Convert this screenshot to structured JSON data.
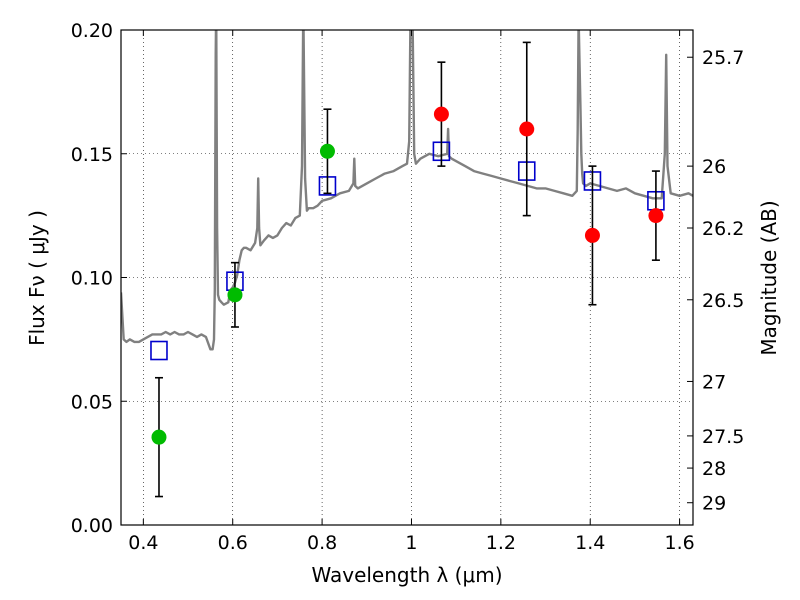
{
  "chart_data": {
    "type": "scatter",
    "xlabel": "Wavelength  λ (μm)",
    "ylabel": "Flux  Fν  ( μJy )",
    "y2label": "Magnitude (AB)",
    "xlim": [
      0.35,
      1.63
    ],
    "ylim": [
      0.0,
      0.2
    ],
    "grid": true,
    "x_ticks": [
      0.4,
      0.6,
      0.8,
      1.0,
      1.2,
      1.4,
      1.6
    ],
    "x_tick_labels": [
      "0.4",
      "0.6",
      "0.8",
      "1",
      "1.2",
      "1.4",
      "1.6"
    ],
    "y_ticks": [
      0.0,
      0.05,
      0.1,
      0.15,
      0.2
    ],
    "y_tick_labels": [
      "0.00",
      "0.05",
      "0.10",
      "0.15",
      "0.20"
    ],
    "y2_ticks": [
      {
        "label": "25.7",
        "flux": 0.189
      },
      {
        "label": "26",
        "flux": 0.145
      },
      {
        "label": "26.2",
        "flux": 0.12
      },
      {
        "label": "26.5",
        "flux": 0.091
      },
      {
        "label": "27",
        "flux": 0.058
      },
      {
        "label": "27.5",
        "flux": 0.036
      },
      {
        "label": "28",
        "flux": 0.023
      },
      {
        "label": "29",
        "flux": 0.009
      }
    ],
    "colors": {
      "model": "#808080",
      "model_photometry": "#0000cc",
      "optical_points": "#00bb00",
      "nir_points": "#ff0000",
      "errorbar": "#000000"
    },
    "series": [
      {
        "role": "model_spectrum",
        "x": [
          0.35,
          0.356,
          0.362,
          0.37,
          0.38,
          0.39,
          0.4,
          0.41,
          0.42,
          0.43,
          0.44,
          0.45,
          0.46,
          0.47,
          0.48,
          0.49,
          0.5,
          0.51,
          0.52,
          0.53,
          0.54,
          0.55,
          0.555,
          0.558,
          0.56,
          0.562,
          0.563,
          0.565,
          0.567,
          0.57,
          0.575,
          0.58,
          0.59,
          0.595,
          0.6,
          0.605,
          0.61,
          0.615,
          0.62,
          0.625,
          0.63,
          0.64,
          0.65,
          0.655,
          0.657,
          0.659,
          0.662,
          0.67,
          0.68,
          0.69,
          0.7,
          0.71,
          0.72,
          0.73,
          0.74,
          0.75,
          0.755,
          0.758,
          0.762,
          0.766,
          0.77,
          0.78,
          0.79,
          0.8,
          0.82,
          0.84,
          0.86,
          0.87,
          0.872,
          0.874,
          0.88,
          0.9,
          0.92,
          0.94,
          0.96,
          0.98,
          0.99,
          0.995,
          0.998,
          1.002,
          1.006,
          1.01,
          1.02,
          1.04,
          1.06,
          1.08,
          1.082,
          1.084,
          1.09,
          1.1,
          1.12,
          1.14,
          1.16,
          1.18,
          1.2,
          1.22,
          1.24,
          1.26,
          1.28,
          1.3,
          1.32,
          1.34,
          1.36,
          1.37,
          1.372,
          1.374,
          1.378,
          1.38,
          1.382,
          1.384,
          1.39,
          1.4,
          1.42,
          1.44,
          1.46,
          1.48,
          1.5,
          1.52,
          1.54,
          1.56,
          1.567,
          1.57,
          1.573,
          1.58,
          1.6,
          1.62,
          1.63
        ],
        "y": [
          0.094,
          0.075,
          0.074,
          0.075,
          0.074,
          0.074,
          0.075,
          0.076,
          0.077,
          0.077,
          0.077,
          0.078,
          0.077,
          0.078,
          0.077,
          0.077,
          0.078,
          0.077,
          0.076,
          0.077,
          0.076,
          0.071,
          0.071,
          0.075,
          0.095,
          0.19,
          0.21,
          0.12,
          0.093,
          0.091,
          0.09,
          0.089,
          0.09,
          0.095,
          0.096,
          0.098,
          0.101,
          0.107,
          0.111,
          0.112,
          0.112,
          0.111,
          0.114,
          0.12,
          0.14,
          0.12,
          0.113,
          0.115,
          0.117,
          0.116,
          0.117,
          0.12,
          0.122,
          0.121,
          0.124,
          0.125,
          0.145,
          0.21,
          0.14,
          0.127,
          0.128,
          0.128,
          0.129,
          0.131,
          0.132,
          0.134,
          0.135,
          0.138,
          0.148,
          0.137,
          0.136,
          0.138,
          0.14,
          0.142,
          0.143,
          0.145,
          0.146,
          0.155,
          0.21,
          0.21,
          0.15,
          0.146,
          0.148,
          0.15,
          0.149,
          0.15,
          0.16,
          0.149,
          0.148,
          0.147,
          0.145,
          0.143,
          0.142,
          0.141,
          0.14,
          0.139,
          0.138,
          0.137,
          0.136,
          0.136,
          0.135,
          0.134,
          0.133,
          0.135,
          0.16,
          0.205,
          0.17,
          0.15,
          0.142,
          0.138,
          0.137,
          0.138,
          0.137,
          0.136,
          0.135,
          0.136,
          0.134,
          0.133,
          0.132,
          0.132,
          0.15,
          0.19,
          0.145,
          0.134,
          0.133,
          0.134,
          0.133
        ]
      },
      {
        "role": "model_photometry",
        "x": [
          0.435,
          0.605,
          0.812,
          1.067,
          1.258,
          1.405,
          1.547
        ],
        "y": [
          0.0705,
          0.0985,
          0.137,
          0.151,
          0.143,
          0.139,
          0.131
        ]
      },
      {
        "role": "optical_observed",
        "x": [
          0.435,
          0.605,
          0.812
        ],
        "y": [
          0.0355,
          0.093,
          0.151
        ],
        "yerr": [
          0.024,
          0.013,
          0.017
        ]
      },
      {
        "role": "nir_observed",
        "x": [
          1.067,
          1.258,
          1.405,
          1.547
        ],
        "y": [
          0.166,
          0.16,
          0.117,
          0.125
        ],
        "yerr": [
          0.021,
          0.035,
          0.028,
          0.018
        ]
      }
    ]
  }
}
